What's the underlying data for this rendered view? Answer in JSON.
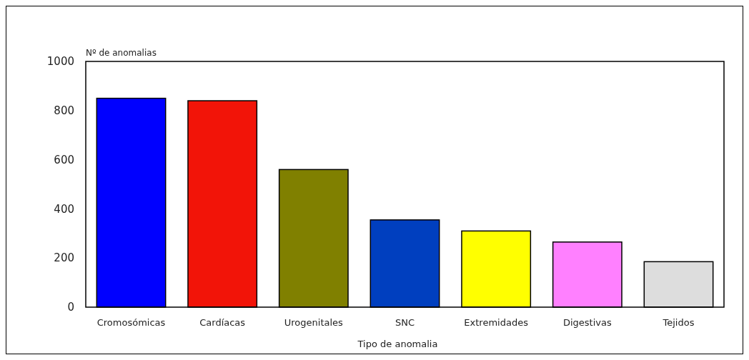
{
  "chart_data": {
    "type": "bar",
    "xlabel": "Tipo de anomalia",
    "ylabel": "Nº de anomalias",
    "categories": [
      "Cromosómicas",
      "Cardíacas",
      "Urogenitales",
      "SNC",
      "Extremidades",
      "Digestivas",
      "Tejidos"
    ],
    "values": [
      850,
      840,
      560,
      355,
      310,
      265,
      185
    ],
    "colors": [
      "#0000ff",
      "#f21408",
      "#808000",
      "#003fbf",
      "#ffff00",
      "#ff80ff",
      "#dddddd"
    ],
    "ylim": [
      0,
      1000
    ],
    "yticks": [
      0,
      200,
      400,
      600,
      800,
      1000
    ],
    "grid": false
  }
}
